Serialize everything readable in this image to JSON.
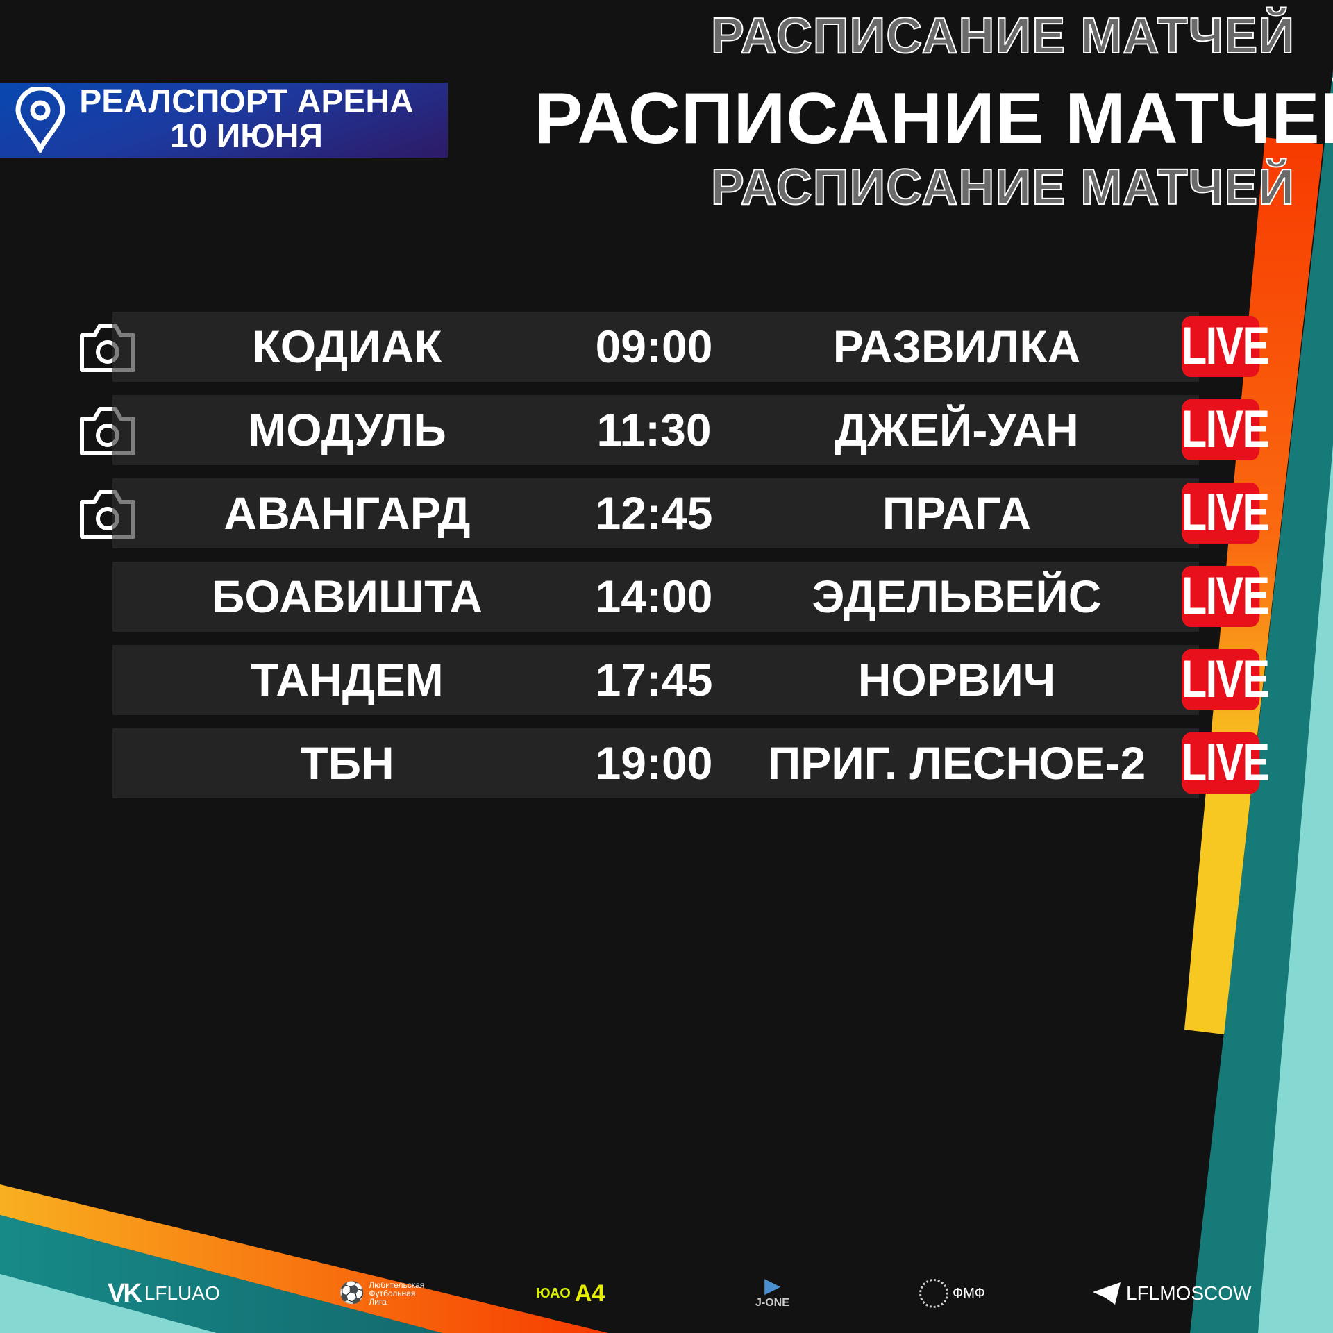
{
  "header": {
    "venue": "РЕАЛСПОРТ АРЕНА",
    "date": "10 ИЮНЯ",
    "title": "РАСПИСАНИЕ МАТЧЕЙ",
    "title_outline": "РАСПИСАНИЕ МАТЧЕЙ"
  },
  "matches": [
    {
      "home": "КОДИАК",
      "time": "09:00",
      "away": "РАЗВИЛКА",
      "live": "LIVE",
      "camera": true
    },
    {
      "home": "МОДУЛЬ",
      "time": "11:30",
      "away": "ДЖЕЙ-УАН",
      "live": "LIVE",
      "camera": true
    },
    {
      "home": "АВАНГАРД",
      "time": "12:45",
      "away": "ПРАГА",
      "live": "LIVE",
      "camera": true
    },
    {
      "home": "БОАВИШТА",
      "time": "14:00",
      "away": "ЭДЕЛЬВЕЙС",
      "live": "LIVE",
      "camera": false
    },
    {
      "home": "ТАНДЕМ",
      "time": "17:45",
      "away": "НОРВИЧ",
      "live": "LIVE",
      "camera": false
    },
    {
      "home": "ТБН",
      "time": "19:00",
      "away": "ПРИГ. ЛЕСНОЕ-2",
      "live": "LIVE",
      "camera": false
    }
  ],
  "footer": {
    "vk": "LFLUAO",
    "league": "Любительская Футбольная Лига",
    "yuao": "ЮАО",
    "jone": "J-ONE",
    "fmf": "ФМФ",
    "telegram": "LFLMOSCOW"
  },
  "colors": {
    "background": "#121212",
    "live": "#e8101a",
    "orange": "#f73a00",
    "yellow": "#f8c822",
    "teal": "#157a78",
    "light_teal": "#86d9d2"
  }
}
